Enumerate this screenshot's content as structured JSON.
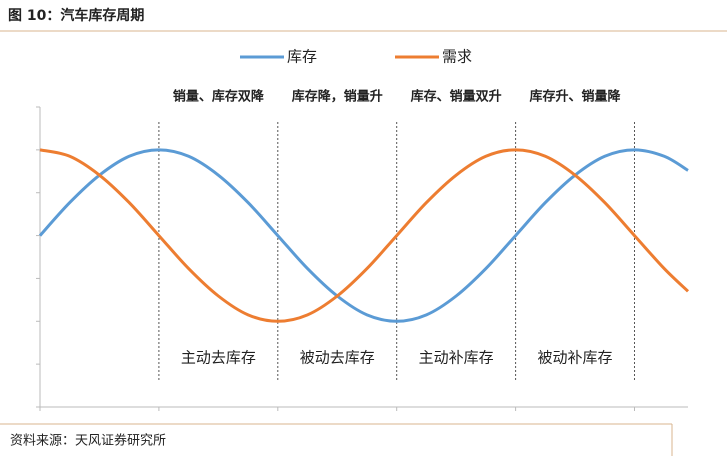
{
  "chart_data": {
    "type": "line",
    "title": "图 10：汽车库存周期",
    "source": "资料来源：天风证券研究所",
    "x": [
      0,
      0.25,
      0.5,
      0.75,
      1,
      1.25,
      1.5,
      1.75,
      2,
      2.25,
      2.5,
      2.75,
      3,
      3.25,
      3.5,
      3.75,
      4,
      4.25,
      4.5,
      4.75,
      5,
      5.25,
      5.45
    ],
    "series": [
      {
        "name": "库存",
        "color": "#5b9bd5",
        "values": [
          4,
          4.77,
          5.41,
          5.85,
          6,
          5.85,
          5.41,
          4.77,
          4,
          3.23,
          2.59,
          2.15,
          2,
          2.15,
          2.59,
          3.23,
          4,
          4.77,
          5.41,
          5.85,
          6,
          5.85,
          5.52
        ]
      },
      {
        "name": "需求",
        "color": "#ed7d31",
        "values": [
          6,
          5.85,
          5.41,
          4.77,
          4,
          3.23,
          2.59,
          2.15,
          2,
          2.15,
          2.59,
          3.23,
          4,
          4.77,
          5.41,
          5.85,
          6,
          5.85,
          5.41,
          4.77,
          4,
          3.23,
          2.7
        ]
      }
    ],
    "phases": [
      {
        "top": "销量、库存双降",
        "bottom": "主动去库存"
      },
      {
        "top": "库存降，销量升",
        "bottom": "被动去库存"
      },
      {
        "top": "库存、销量双升",
        "bottom": "主动补库存"
      },
      {
        "top": "库存升、销量降",
        "bottom": "被动补库存"
      }
    ],
    "xlim": [
      0,
      5.45
    ],
    "xticks": [
      0,
      1,
      2,
      3,
      4,
      5
    ],
    "ylim": [
      0,
      7
    ],
    "yticks": [
      0,
      1,
      2,
      3,
      4,
      5,
      6,
      7
    ],
    "legend": "top"
  }
}
